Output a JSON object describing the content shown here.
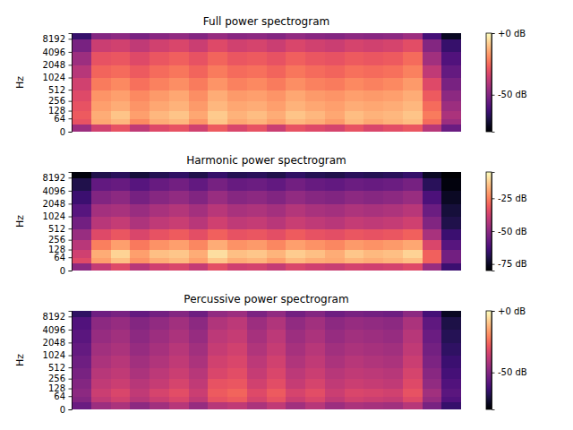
{
  "chart_data": [
    {
      "type": "heatmap",
      "title": "Full power spectrogram",
      "y_label": "Hz",
      "color": "magma",
      "log": "y",
      "tick_labels": "y",
      "ylim": [
        0,
        11025
      ],
      "yticks": [
        0,
        64,
        128,
        256,
        512,
        1024,
        2048,
        4096,
        8192
      ],
      "y_bins": [
        0,
        32,
        64,
        128,
        256,
        512,
        1024,
        2048,
        4096,
        8192,
        11025
      ],
      "z": [
        [
          -45,
          -35,
          -30,
          -38,
          -32,
          -30,
          -35,
          -28,
          -33,
          -30,
          -36,
          -30,
          -32,
          -34,
          -30,
          -33,
          -31,
          -29,
          -40,
          -55
        ],
        [
          -30,
          -15,
          -12,
          -20,
          -14,
          -12,
          -18,
          -10,
          -15,
          -13,
          -16,
          -12,
          -14,
          -17,
          -12,
          -15,
          -13,
          -11,
          -25,
          -45
        ],
        [
          -28,
          -14,
          -10,
          -16,
          -12,
          -10,
          -15,
          -9,
          -13,
          -11,
          -14,
          -10,
          -12,
          -15,
          -11,
          -13,
          -12,
          -10,
          -22,
          -42
        ],
        [
          -30,
          -16,
          -14,
          -18,
          -15,
          -13,
          -17,
          -12,
          -15,
          -14,
          -16,
          -13,
          -15,
          -16,
          -14,
          -15,
          -14,
          -12,
          -25,
          -45
        ],
        [
          -32,
          -18,
          -16,
          -20,
          -17,
          -15,
          -19,
          -14,
          -17,
          -16,
          -18,
          -15,
          -17,
          -18,
          -16,
          -17,
          -16,
          -14,
          -28,
          -48
        ],
        [
          -35,
          -22,
          -20,
          -24,
          -21,
          -19,
          -22,
          -18,
          -21,
          -20,
          -22,
          -19,
          -21,
          -22,
          -20,
          -21,
          -20,
          -17,
          -32,
          -52
        ],
        [
          -40,
          -26,
          -25,
          -28,
          -25,
          -23,
          -26,
          -22,
          -25,
          -24,
          -26,
          -23,
          -25,
          -26,
          -24,
          -25,
          -24,
          -21,
          -38,
          -56
        ],
        [
          -45,
          -30,
          -29,
          -32,
          -29,
          -27,
          -30,
          -26,
          -29,
          -28,
          -30,
          -27,
          -29,
          -30,
          -28,
          -29,
          -28,
          -25,
          -44,
          -60
        ],
        [
          -52,
          -36,
          -35,
          -38,
          -35,
          -33,
          -36,
          -32,
          -35,
          -34,
          -36,
          -33,
          -35,
          -36,
          -34,
          -35,
          -34,
          -31,
          -50,
          -65
        ],
        [
          -65,
          -50,
          -48,
          -52,
          -49,
          -47,
          -50,
          -46,
          -49,
          -48,
          -50,
          -47,
          -49,
          -50,
          -48,
          -49,
          -48,
          -45,
          -62,
          -75
        ]
      ],
      "colorbar": {
        "range": [
          -80,
          0
        ],
        "ticks": [
          {
            "value": 0,
            "label": "+0 dB"
          },
          {
            "value": -50,
            "label": "-50 dB"
          }
        ]
      }
    },
    {
      "type": "heatmap",
      "title": "Harmonic power spectrogram",
      "y_label": "Hz",
      "color": "magma",
      "log": "y",
      "tick_labels": "y",
      "ylim": [
        0,
        11025
      ],
      "yticks": [
        0,
        64,
        128,
        256,
        512,
        1024,
        2048,
        4096,
        8192
      ],
      "y_bins": [
        0,
        32,
        64,
        128,
        256,
        512,
        1024,
        2048,
        4096,
        8192,
        11025
      ],
      "z": [
        [
          -50,
          -40,
          -35,
          -42,
          -38,
          -36,
          -40,
          -34,
          -38,
          -37,
          -40,
          -36,
          -38,
          -39,
          -37,
          -38,
          -37,
          -35,
          -48,
          -65
        ],
        [
          -35,
          -20,
          -15,
          -22,
          -18,
          -16,
          -20,
          -14,
          -18,
          -17,
          -20,
          -16,
          -18,
          -19,
          -17,
          -18,
          -17,
          -15,
          -30,
          -55
        ],
        [
          -38,
          -18,
          -12,
          -20,
          -15,
          -14,
          -18,
          -10,
          -15,
          -14,
          -17,
          -13,
          -15,
          -18,
          -14,
          -16,
          -15,
          -12,
          -30,
          -55
        ],
        [
          -42,
          -25,
          -20,
          -26,
          -22,
          -20,
          -24,
          -18,
          -22,
          -21,
          -24,
          -20,
          -22,
          -24,
          -21,
          -22,
          -21,
          -19,
          -36,
          -60
        ],
        [
          -48,
          -35,
          -32,
          -36,
          -33,
          -31,
          -34,
          -30,
          -33,
          -32,
          -34,
          -31,
          -33,
          -34,
          -32,
          -33,
          -32,
          -30,
          -45,
          -65
        ],
        [
          -55,
          -42,
          -40,
          -44,
          -41,
          -39,
          -42,
          -38,
          -41,
          -40,
          -42,
          -39,
          -41,
          -42,
          -40,
          -41,
          -40,
          -38,
          -52,
          -70
        ],
        [
          -60,
          -46,
          -45,
          -48,
          -45,
          -43,
          -46,
          -42,
          -45,
          -44,
          -46,
          -43,
          -45,
          -46,
          -44,
          -45,
          -44,
          -42,
          -56,
          -72
        ],
        [
          -65,
          -52,
          -50,
          -54,
          -51,
          -49,
          -52,
          -48,
          -51,
          -50,
          -52,
          -49,
          -51,
          -52,
          -50,
          -51,
          -50,
          -48,
          -62,
          -75
        ],
        [
          -70,
          -58,
          -57,
          -60,
          -57,
          -55,
          -58,
          -54,
          -57,
          -56,
          -58,
          -55,
          -57,
          -58,
          -56,
          -57,
          -56,
          -54,
          -68,
          -78
        ],
        [
          -78,
          -70,
          -68,
          -72,
          -69,
          -67,
          -70,
          -66,
          -69,
          -68,
          -70,
          -67,
          -69,
          -70,
          -68,
          -69,
          -68,
          -66,
          -75,
          -80
        ]
      ],
      "colorbar": {
        "range": [
          -80,
          -5
        ],
        "ticks": [
          {
            "value": -25,
            "label": "-25 dB"
          },
          {
            "value": -50,
            "label": "-50 dB"
          },
          {
            "value": -75,
            "label": "-75 dB"
          }
        ]
      }
    },
    {
      "type": "heatmap",
      "title": "Percussive power spectrogram",
      "y_label": "Hz",
      "color": "magma",
      "log": "y",
      "tick_labels": "y",
      "ylim": [
        0,
        11025
      ],
      "yticks": [
        0,
        64,
        128,
        256,
        512,
        1024,
        2048,
        4096,
        8192
      ],
      "y_bins": [
        0,
        32,
        64,
        128,
        256,
        512,
        1024,
        2048,
        4096,
        8192,
        11025
      ],
      "z": [
        [
          -55,
          -45,
          -42,
          -48,
          -44,
          -40,
          -46,
          -40,
          -38,
          -42,
          -38,
          -44,
          -40,
          -45,
          -42,
          -43,
          -44,
          -40,
          -52,
          -65
        ],
        [
          -50,
          -38,
          -35,
          -40,
          -36,
          -33,
          -38,
          -30,
          -28,
          -34,
          -30,
          -36,
          -33,
          -38,
          -35,
          -36,
          -37,
          -32,
          -46,
          -60
        ],
        [
          -48,
          -36,
          -33,
          -38,
          -34,
          -31,
          -36,
          -28,
          -26,
          -32,
          -28,
          -34,
          -31,
          -36,
          -33,
          -34,
          -35,
          -30,
          -44,
          -58
        ],
        [
          -50,
          -38,
          -36,
          -40,
          -37,
          -34,
          -38,
          -30,
          -29,
          -35,
          -31,
          -37,
          -34,
          -38,
          -36,
          -37,
          -38,
          -32,
          -47,
          -60
        ],
        [
          -52,
          -40,
          -38,
          -42,
          -39,
          -36,
          -40,
          -33,
          -31,
          -37,
          -33,
          -39,
          -36,
          -40,
          -38,
          -39,
          -40,
          -34,
          -49,
          -62
        ],
        [
          -54,
          -42,
          -40,
          -44,
          -41,
          -38,
          -42,
          -35,
          -33,
          -39,
          -35,
          -41,
          -38,
          -42,
          -40,
          -41,
          -42,
          -36,
          -51,
          -64
        ],
        [
          -56,
          -44,
          -42,
          -46,
          -43,
          -40,
          -44,
          -37,
          -35,
          -41,
          -37,
          -43,
          -40,
          -44,
          -42,
          -43,
          -44,
          -38,
          -53,
          -66
        ],
        [
          -58,
          -46,
          -44,
          -48,
          -45,
          -42,
          -46,
          -39,
          -37,
          -43,
          -39,
          -45,
          -42,
          -46,
          -44,
          -45,
          -46,
          -40,
          -55,
          -68
        ],
        [
          -60,
          -48,
          -46,
          -50,
          -47,
          -44,
          -48,
          -41,
          -39,
          -45,
          -41,
          -47,
          -44,
          -48,
          -46,
          -47,
          -48,
          -42,
          -57,
          -70
        ],
        [
          -66,
          -54,
          -52,
          -56,
          -53,
          -50,
          -54,
          -47,
          -45,
          -51,
          -47,
          -53,
          -50,
          -54,
          -52,
          -53,
          -54,
          -48,
          -62,
          -75
        ]
      ],
      "colorbar": {
        "range": [
          -80,
          0
        ],
        "ticks": [
          {
            "value": 0,
            "label": "+0 dB"
          },
          {
            "value": -50,
            "label": "-50 dB"
          }
        ]
      }
    }
  ]
}
